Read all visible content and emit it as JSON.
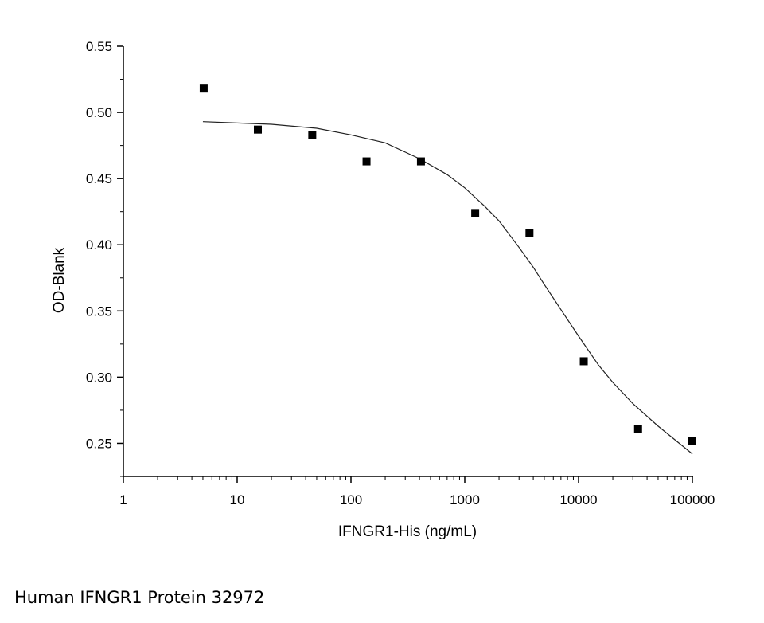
{
  "chart_data": {
    "type": "scatter",
    "title": "",
    "xlabel": "IFNGR1-His (ng/mL)",
    "ylabel": "OD-Blank",
    "xscale": "log",
    "xlim": [
      1,
      100000
    ],
    "ylim": [
      0.225,
      0.55
    ],
    "x_ticks": [
      1,
      10,
      100,
      1000,
      10000,
      100000
    ],
    "x_tick_labels": [
      "1",
      "10",
      "100",
      "1000",
      "10000",
      "100000"
    ],
    "y_ticks": [
      0.25,
      0.3,
      0.35,
      0.4,
      0.45,
      0.5,
      0.55
    ],
    "y_tick_labels": [
      "0.25",
      "0.30",
      "0.35",
      "0.40",
      "0.45",
      "0.50",
      "0.55"
    ],
    "grid": false,
    "legend": "none",
    "marker_color": "#000000",
    "points": {
      "x": [
        5.08,
        15.2,
        45.7,
        137,
        412,
        1235,
        3704,
        11111,
        33333,
        100000
      ],
      "y": [
        0.518,
        0.487,
        0.483,
        0.463,
        0.463,
        0.424,
        0.409,
        0.312,
        0.261,
        0.252
      ]
    },
    "fit_curve": {
      "x": [
        5,
        10,
        20,
        50,
        100,
        200,
        400,
        700,
        1000,
        1500,
        2000,
        3000,
        4000,
        5000,
        7000,
        10000,
        15000,
        20000,
        30000,
        50000,
        100000
      ],
      "y": [
        0.493,
        0.492,
        0.491,
        0.488,
        0.483,
        0.477,
        0.465,
        0.453,
        0.443,
        0.429,
        0.418,
        0.398,
        0.383,
        0.37,
        0.351,
        0.331,
        0.309,
        0.296,
        0.28,
        0.263,
        0.242
      ]
    }
  },
  "caption": "Human IFNGR1 Protein 32972"
}
